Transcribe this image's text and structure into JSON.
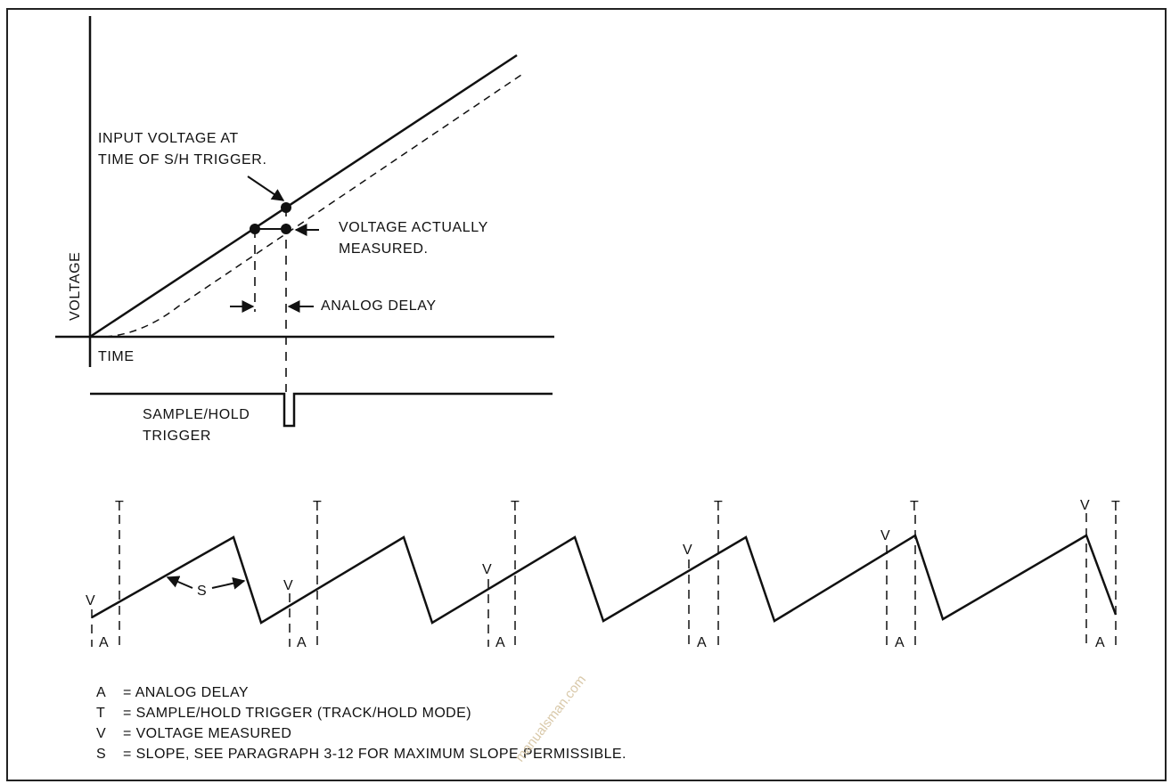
{
  "top_diagram": {
    "y_axis_label": "VOLTAGE",
    "x_axis_label": "TIME",
    "annotations": {
      "input_voltage_line1": "INPUT VOLTAGE AT",
      "input_voltage_line2": "TIME OF S/H TRIGGER.",
      "measured_line1": "VOLTAGE ACTUALLY",
      "measured_line2": "MEASURED.",
      "analog_delay": "ANALOG DELAY"
    },
    "trigger_label_line1": "SAMPLE/HOLD",
    "trigger_label_line2": "TRIGGER"
  },
  "bottom_diagram": {
    "marker_letters": {
      "trigger": "T",
      "measured": "V",
      "delay": "A",
      "slope": "S"
    }
  },
  "legend": [
    {
      "key": "A",
      "text": "= ANALOG DELAY"
    },
    {
      "key": "T",
      "text": "= SAMPLE/HOLD TRIGGER (TRACK/HOLD MODE)"
    },
    {
      "key": "V",
      "text": "= VOLTAGE MEASURED"
    },
    {
      "key": "S",
      "text": "= SLOPE, SEE PARAGRAPH 3-12 FOR MAXIMUM SLOPE PERMISSIBLE."
    }
  ],
  "watermark": "manualsman.com",
  "colors": {
    "ink": "#111111",
    "border": "#222222",
    "watermark": "#d9c9aa"
  }
}
